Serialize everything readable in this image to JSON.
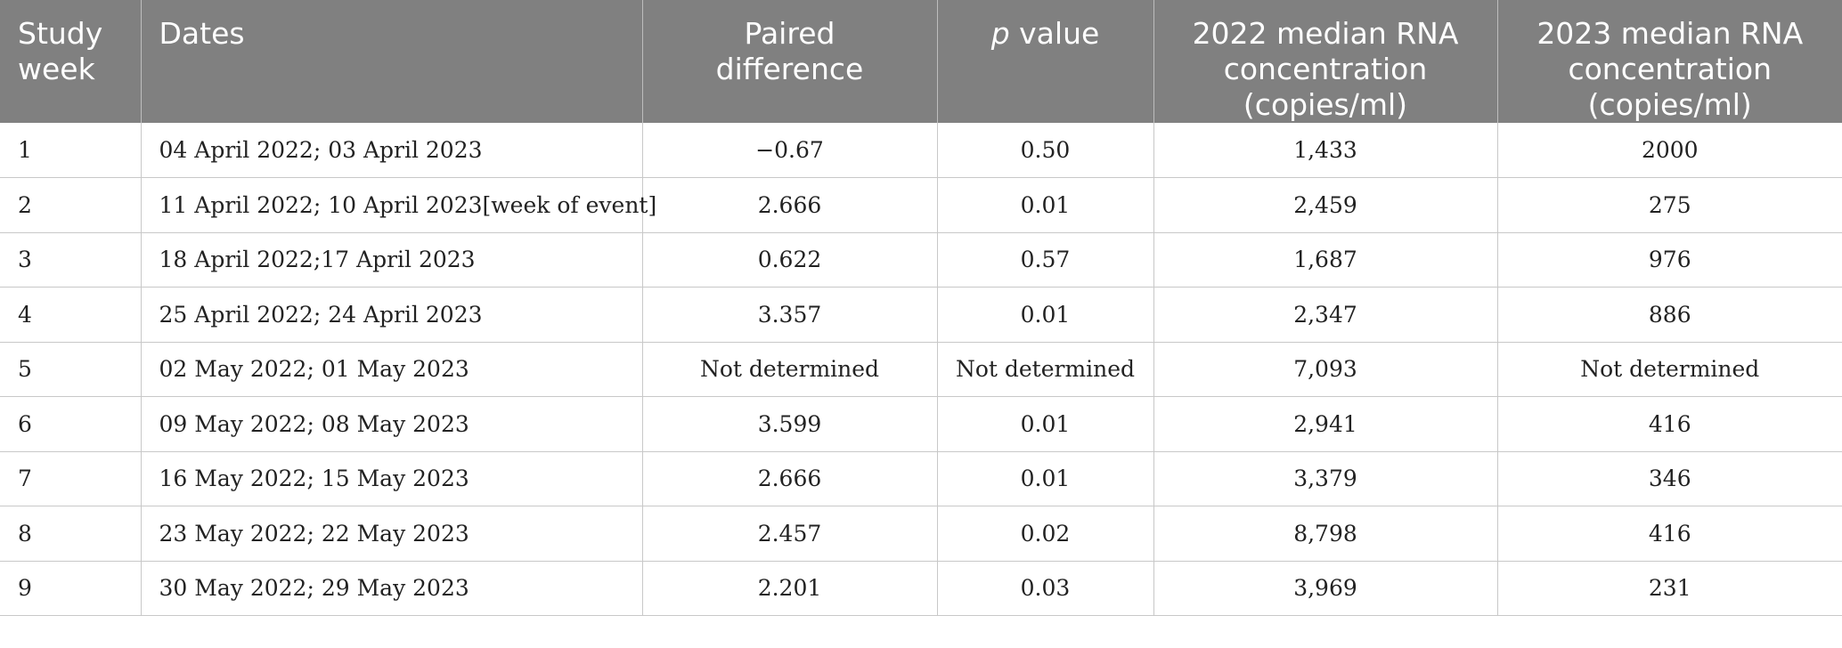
{
  "header": {
    "study_week": [
      "Study",
      "week"
    ],
    "dates": "Dates",
    "paired_difference": [
      "Paired",
      "difference"
    ],
    "p_value_italic": "p",
    "p_value_rest": " value",
    "median_2022": [
      "2022 median RNA",
      "concentration",
      "(copies/ml)"
    ],
    "median_2023": [
      "2023 median RNA",
      "concentration",
      "(copies/ml)"
    ]
  },
  "rows": [
    {
      "week": "1",
      "dates": "04 April 2022; 03 April 2023",
      "paired_difference": "−0.67",
      "p_value": "0.50",
      "median_2022": "1,433",
      "median_2023": "2000"
    },
    {
      "week": "2",
      "dates": "11 April 2022; 10 April 2023[week of event]",
      "paired_difference": "2.666",
      "p_value": "0.01",
      "median_2022": "2,459",
      "median_2023": "275"
    },
    {
      "week": "3",
      "dates": "18 April 2022;17 April 2023",
      "paired_difference": "0.622",
      "p_value": "0.57",
      "median_2022": "1,687",
      "median_2023": "976"
    },
    {
      "week": "4",
      "dates": "25 April 2022; 24 April 2023",
      "paired_difference": "3.357",
      "p_value": "0.01",
      "median_2022": "2,347",
      "median_2023": "886"
    },
    {
      "week": "5",
      "dates": "02 May 2022; 01 May 2023",
      "paired_difference": "Not determined",
      "p_value": "Not determined",
      "median_2022": "7,093",
      "median_2023": "Not determined"
    },
    {
      "week": "6",
      "dates": "09 May 2022; 08 May 2023",
      "paired_difference": "3.599",
      "p_value": "0.01",
      "median_2022": "2,941",
      "median_2023": "416"
    },
    {
      "week": "7",
      "dates": "16 May 2022; 15 May 2023",
      "paired_difference": "2.666",
      "p_value": "0.01",
      "median_2022": "3,379",
      "median_2023": "346"
    },
    {
      "week": "8",
      "dates": "23 May 2022; 22 May 2023",
      "paired_difference": "2.457",
      "p_value": "0.02",
      "median_2022": "8,798",
      "median_2023": "416"
    },
    {
      "week": "9",
      "dates": "30 May 2022; 29 May 2023",
      "paired_difference": "2.201",
      "p_value": "0.03",
      "median_2022": "3,969",
      "median_2023": "231"
    }
  ],
  "colors": {
    "header_bg": "#808080",
    "header_text": "#ffffff",
    "grid": "#c8c8c8"
  }
}
